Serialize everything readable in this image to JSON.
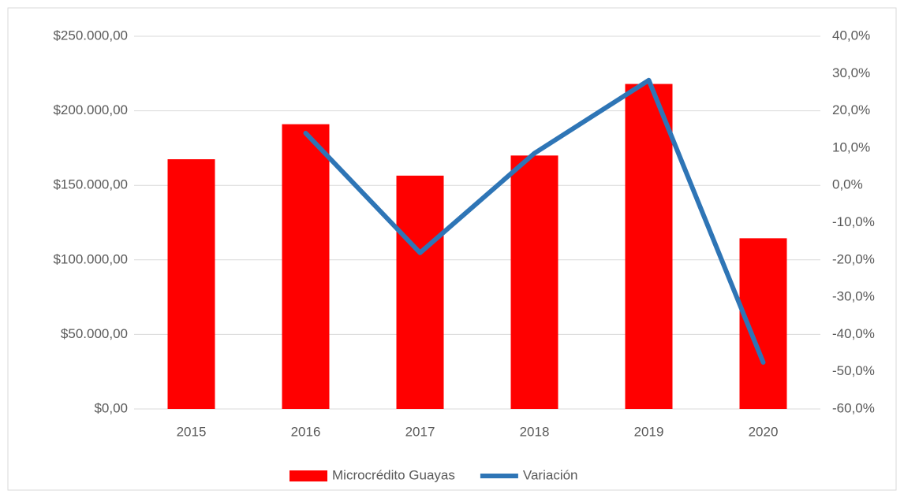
{
  "chart_data": {
    "type": "bar",
    "categories": [
      "2015",
      "2016",
      "2017",
      "2018",
      "2019",
      "2020"
    ],
    "series": [
      {
        "name": "Microcrédito Guayas",
        "type": "bar",
        "color": "#ff0000",
        "values": [
          167500,
          191000,
          156500,
          170000,
          218000,
          114500
        ]
      },
      {
        "name": "Variación",
        "type": "line",
        "axis": "y2",
        "color": "#2e75b6",
        "values": [
          null,
          14.0,
          -18.1,
          8.6,
          28.2,
          -47.5
        ]
      }
    ],
    "ylim": [
      0,
      250000
    ],
    "yticks": [
      {
        "value": 0,
        "label": "$0,00"
      },
      {
        "value": 50000,
        "label": "$50.000,00"
      },
      {
        "value": 100000,
        "label": "$100.000,00"
      },
      {
        "value": 150000,
        "label": "$150.000,00"
      },
      {
        "value": 200000,
        "label": "$200.000,00"
      },
      {
        "value": 250000,
        "label": "$250.000,00"
      }
    ],
    "y2lim": [
      -60,
      40
    ],
    "y2ticks": [
      {
        "value": -60,
        "label": "-60,0%"
      },
      {
        "value": -50,
        "label": "-50,0%"
      },
      {
        "value": -40,
        "label": "-40,0%"
      },
      {
        "value": -30,
        "label": "-30,0%"
      },
      {
        "value": -20,
        "label": "-20,0%"
      },
      {
        "value": -10,
        "label": "-10,0%"
      },
      {
        "value": 0,
        "label": "0,0%"
      },
      {
        "value": 10,
        "label": "10,0%"
      },
      {
        "value": 20,
        "label": "20,0%"
      },
      {
        "value": 30,
        "label": "30,0%"
      },
      {
        "value": 40,
        "label": "40,0%"
      }
    ],
    "grid": true,
    "legend": "bottom"
  }
}
